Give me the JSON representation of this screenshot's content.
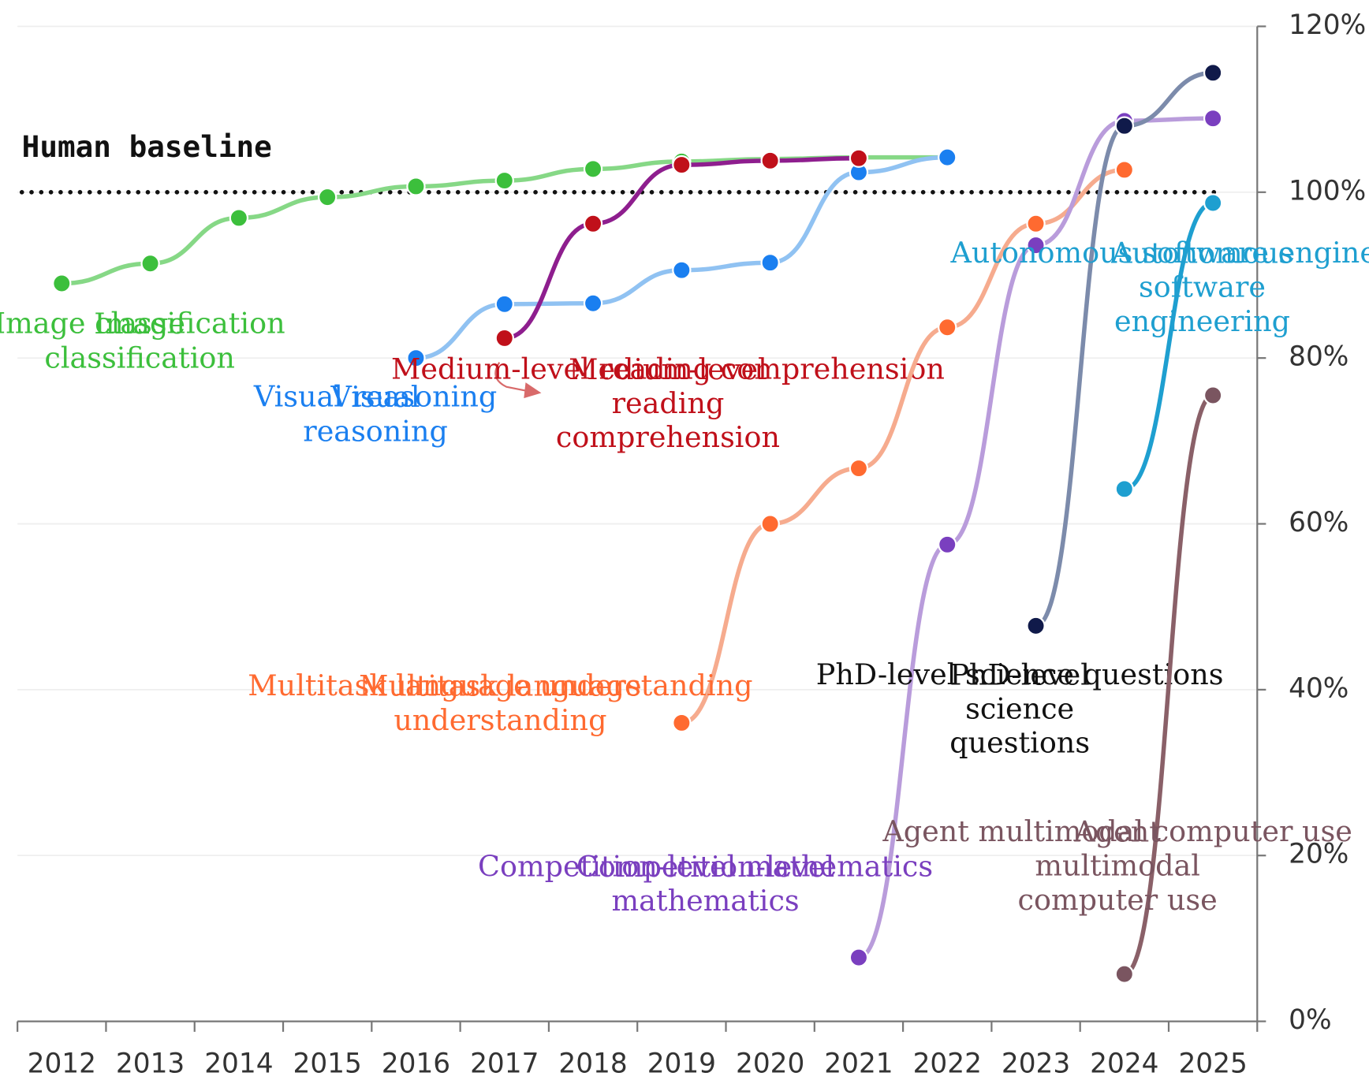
{
  "chart_data": {
    "type": "line",
    "categories": [
      "2012",
      "2013",
      "2014",
      "2015",
      "2016",
      "2017",
      "2018",
      "2019",
      "2020",
      "2021",
      "2022",
      "2023",
      "2024",
      "2025"
    ],
    "ylim": [
      0,
      120
    ],
    "yticks": [
      {
        "value": 0,
        "label": "0%"
      },
      {
        "value": 20,
        "label": "20%"
      },
      {
        "value": 40,
        "label": "40%"
      },
      {
        "value": 60,
        "label": "60%"
      },
      {
        "value": 80,
        "label": "80%"
      },
      {
        "value": 100,
        "label": "100%"
      },
      {
        "value": 120,
        "label": "120%"
      }
    ],
    "grid": true,
    "baseline": {
      "label": "Human baseline",
      "value": 100
    },
    "series": [
      {
        "name": "Image\nclassification",
        "color": "#3cbf3c",
        "line_color": "#86d886",
        "values": [
          89.0,
          91.4,
          96.9,
          99.4,
          100.7,
          101.4,
          102.8,
          103.7,
          104.0,
          104.2,
          104.2,
          null,
          null,
          null
        ]
      },
      {
        "name": "Visual\nreasoning",
        "color": "#1a7ff0",
        "line_color": "#90c2f2",
        "values": [
          null,
          null,
          null,
          null,
          80.0,
          86.5,
          86.6,
          90.6,
          91.5,
          102.4,
          104.2,
          null,
          null,
          null
        ]
      },
      {
        "name": "Medium-level\nreading\ncomprehension",
        "color": "#c0101a",
        "line_color": "#8e1e8e",
        "values": [
          null,
          null,
          null,
          null,
          null,
          82.4,
          96.2,
          103.3,
          103.8,
          104.1,
          null,
          null,
          null,
          null
        ]
      },
      {
        "name": "Multitask language\nunderstanding",
        "color": "#ff6a30",
        "line_color": "#f6ab8e",
        "values": [
          null,
          null,
          null,
          null,
          null,
          null,
          null,
          36.0,
          60.0,
          66.7,
          83.7,
          96.2,
          102.7,
          null
        ]
      },
      {
        "name": "Competition-level\nmathematics",
        "color": "#7a3fbf",
        "line_color": "#b99cdb",
        "values": [
          null,
          null,
          null,
          null,
          null,
          null,
          null,
          null,
          null,
          7.7,
          57.5,
          93.6,
          108.6,
          108.9
        ]
      },
      {
        "name": "PhD-level\nscience\nquestions",
        "color": "#101a4a",
        "line_color": "#7c8bab",
        "values": [
          null,
          null,
          null,
          null,
          null,
          null,
          null,
          null,
          null,
          null,
          null,
          47.7,
          108.0,
          114.4
        ]
      },
      {
        "name": "Autonomous\nsoftware\nengineering",
        "color": "#1e9fd0",
        "line_color": "#1e9fd0",
        "values": [
          null,
          null,
          null,
          null,
          null,
          null,
          null,
          null,
          null,
          null,
          null,
          null,
          64.2,
          98.7
        ]
      },
      {
        "name": "Agent\nmultimodal\ncomputer use",
        "color": "#7a5560",
        "line_color": "#8a6068",
        "values": [
          null,
          null,
          null,
          null,
          null,
          null,
          null,
          null,
          null,
          null,
          null,
          null,
          5.7,
          75.5
        ]
      }
    ]
  }
}
